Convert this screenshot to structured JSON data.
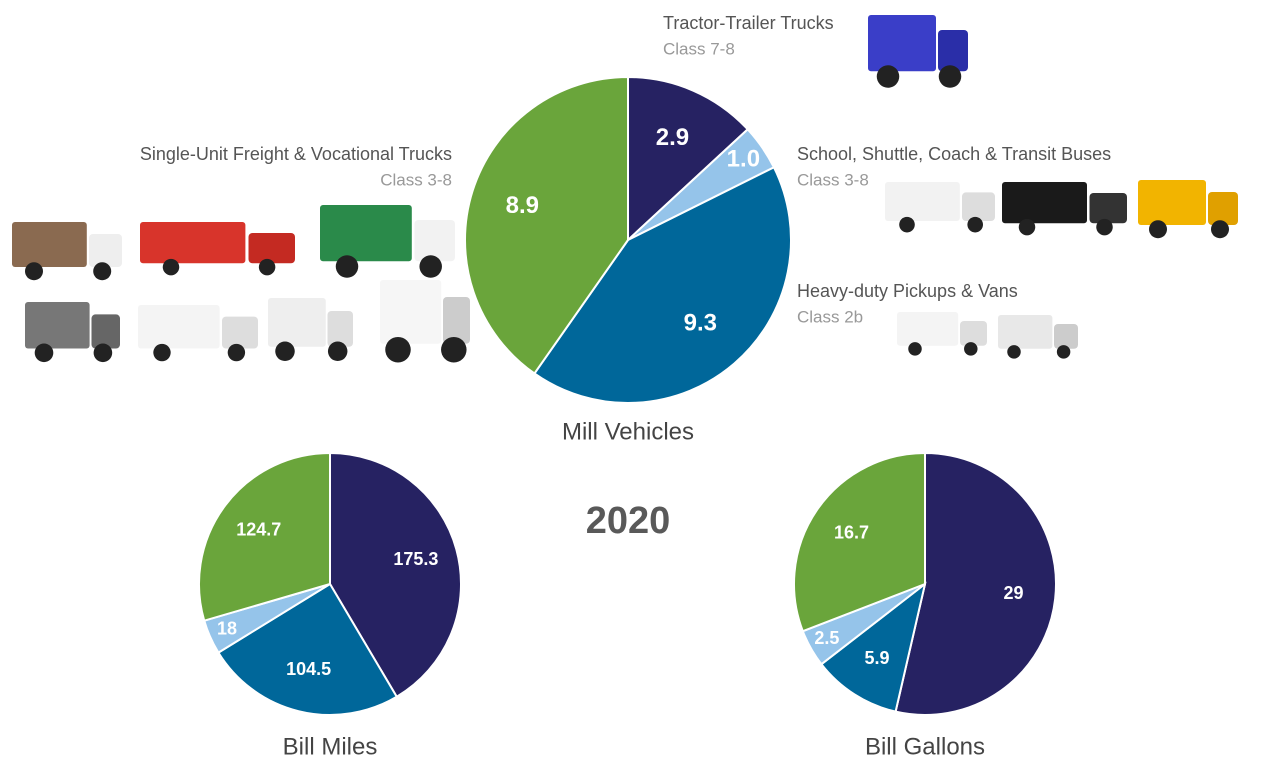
{
  "year": "2020",
  "chart_data": [
    {
      "type": "pie",
      "title": "Mill Vehicles",
      "categories": [
        "Tractor-Trailer Trucks",
        "School, Shuttle, Coach & Transit Buses",
        "Heavy-duty Pickups & Vans",
        "Single-Unit Freight & Vocational Trucks"
      ],
      "classes": [
        "Class 7-8",
        "Class 3-8",
        "Class 2b",
        "Class 3-8"
      ],
      "values": [
        2.9,
        1.0,
        9.3,
        8.9
      ],
      "value_labels": [
        "2.9",
        "1.0",
        "9.3",
        "8.9"
      ],
      "colors": [
        "#262262",
        "#95c4ea",
        "#00679a",
        "#6aa53b"
      ]
    },
    {
      "type": "pie",
      "title": "Bill Miles",
      "values": [
        175.3,
        104.5,
        18,
        124.7
      ],
      "colors": [
        "#262262",
        "#00679a",
        "#95c4ea",
        "#6aa53b"
      ]
    },
    {
      "type": "pie",
      "title": "Bill Gallons",
      "values": [
        29,
        5.9,
        2.5,
        16.7
      ],
      "colors": [
        "#262262",
        "#00679a",
        "#95c4ea",
        "#6aa53b"
      ]
    }
  ]
}
